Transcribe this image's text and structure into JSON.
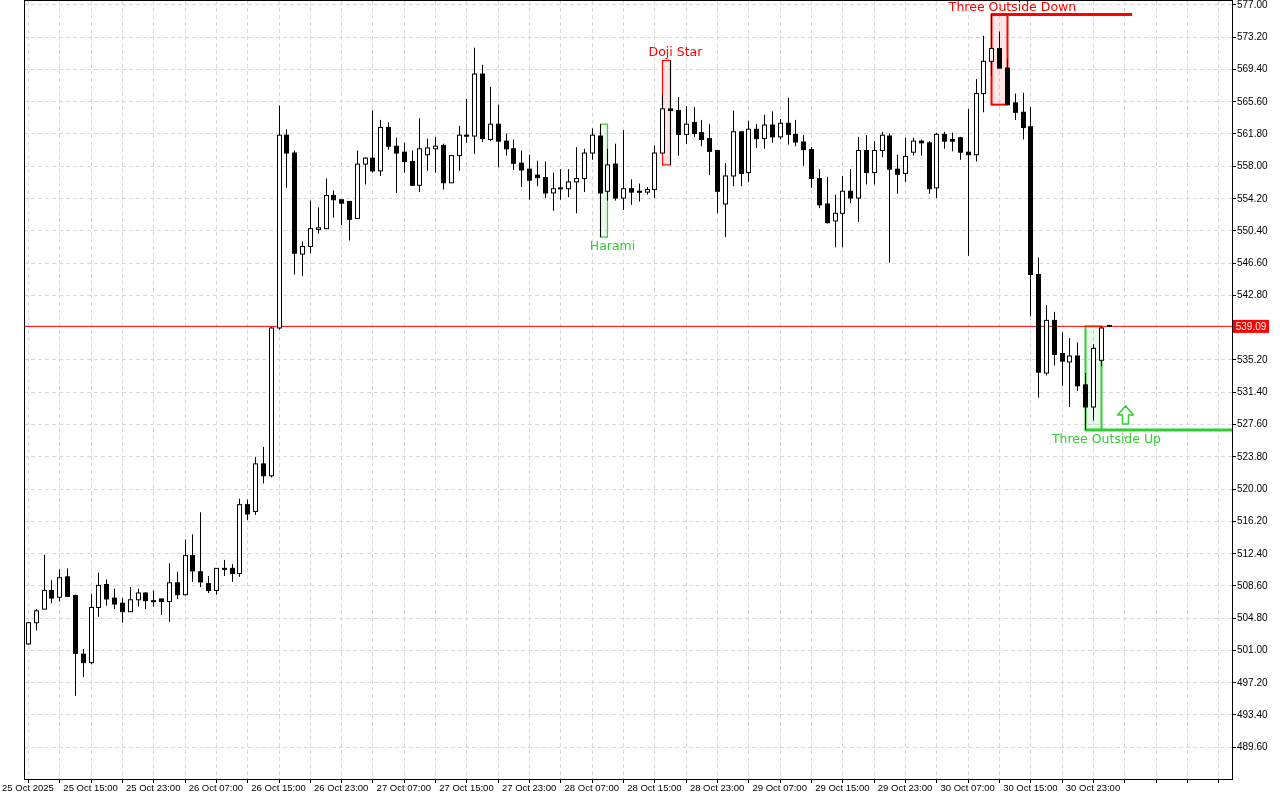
{
  "chart_data": {
    "type": "candlestick",
    "color": "#000000",
    "grid": true,
    "xlim": [
      "2025-10-25T06:30",
      "2025-10-31T16:45"
    ],
    "ylim": [
      485.8,
      577.4
    ],
    "x": [
      "2025-10-25T07:00",
      "2025-10-25T08:00",
      "2025-10-25T09:00",
      "2025-10-25T10:00",
      "2025-10-25T11:00",
      "2025-10-25T12:00",
      "2025-10-25T13:00",
      "2025-10-25T14:00",
      "2025-10-25T15:00",
      "2025-10-25T16:00",
      "2025-10-25T17:00",
      "2025-10-25T18:00",
      "2025-10-25T19:00",
      "2025-10-25T20:00",
      "2025-10-25T21:00",
      "2025-10-25T22:00",
      "2025-10-25T23:00",
      "2025-10-26T00:00",
      "2025-10-26T01:00",
      "2025-10-26T02:00",
      "2025-10-26T03:00",
      "2025-10-26T04:00",
      "2025-10-26T05:00",
      "2025-10-26T06:00",
      "2025-10-26T07:00",
      "2025-10-26T08:00",
      "2025-10-26T09:00",
      "2025-10-26T10:00",
      "2025-10-26T11:00",
      "2025-10-26T12:00",
      "2025-10-26T13:00",
      "2025-10-26T14:00",
      "2025-10-26T15:00",
      "2025-10-26T16:00",
      "2025-10-26T17:00",
      "2025-10-26T18:00",
      "2025-10-26T19:00",
      "2025-10-26T20:00",
      "2025-10-26T21:00",
      "2025-10-26T22:00",
      "2025-10-26T23:00",
      "2025-10-27T00:00",
      "2025-10-27T01:00",
      "2025-10-27T02:00",
      "2025-10-27T03:00",
      "2025-10-27T04:00",
      "2025-10-27T05:00",
      "2025-10-27T06:00",
      "2025-10-27T07:00",
      "2025-10-27T08:00",
      "2025-10-27T09:00",
      "2025-10-27T10:00",
      "2025-10-27T11:00",
      "2025-10-27T12:00",
      "2025-10-27T13:00",
      "2025-10-27T14:00",
      "2025-10-27T15:00",
      "2025-10-27T16:00",
      "2025-10-27T17:00",
      "2025-10-27T18:00",
      "2025-10-27T19:00",
      "2025-10-27T20:00",
      "2025-10-27T21:00",
      "2025-10-27T22:00",
      "2025-10-27T23:00",
      "2025-10-28T00:00",
      "2025-10-28T01:00",
      "2025-10-28T02:00",
      "2025-10-28T03:00",
      "2025-10-28T04:00",
      "2025-10-28T05:00",
      "2025-10-28T06:00",
      "2025-10-28T07:00",
      "2025-10-28T08:00",
      "2025-10-28T09:00",
      "2025-10-28T10:00",
      "2025-10-28T11:00",
      "2025-10-28T12:00",
      "2025-10-28T13:00",
      "2025-10-28T14:00",
      "2025-10-28T15:00",
      "2025-10-28T16:00",
      "2025-10-28T17:00",
      "2025-10-28T18:00",
      "2025-10-28T19:00",
      "2025-10-28T20:00",
      "2025-10-28T21:00",
      "2025-10-28T22:00",
      "2025-10-28T23:00",
      "2025-10-29T00:00",
      "2025-10-29T01:00",
      "2025-10-29T02:00",
      "2025-10-29T03:00",
      "2025-10-29T04:00",
      "2025-10-29T05:00",
      "2025-10-29T06:00",
      "2025-10-29T07:00",
      "2025-10-29T08:00",
      "2025-10-29T09:00",
      "2025-10-29T10:00",
      "2025-10-29T11:00",
      "2025-10-29T12:00",
      "2025-10-29T13:00",
      "2025-10-29T14:00",
      "2025-10-29T15:00",
      "2025-10-29T16:00",
      "2025-10-29T17:00",
      "2025-10-29T18:00",
      "2025-10-29T19:00",
      "2025-10-29T20:00",
      "2025-10-29T21:00",
      "2025-10-29T22:00",
      "2025-10-29T23:00",
      "2025-10-30T00:00",
      "2025-10-30T01:00",
      "2025-10-30T02:00",
      "2025-10-30T03:00",
      "2025-10-30T04:00",
      "2025-10-30T05:00",
      "2025-10-30T06:00",
      "2025-10-30T07:00",
      "2025-10-30T08:00",
      "2025-10-30T09:00",
      "2025-10-30T10:00",
      "2025-10-30T11:00",
      "2025-10-30T12:00",
      "2025-10-30T13:00",
      "2025-10-30T14:00",
      "2025-10-30T15:00",
      "2025-10-30T16:00",
      "2025-10-30T17:00",
      "2025-10-30T18:00",
      "2025-10-30T19:00",
      "2025-10-30T20:00",
      "2025-10-30T21:00",
      "2025-10-30T22:00",
      "2025-10-30T23:00",
      "2025-10-31T00:00",
      "2025-10-31T01:00"
    ],
    "ohlc": [
      [
        501.7,
        504.3,
        501.6,
        504.2
      ],
      [
        504.2,
        505.8,
        503.3,
        505.6
      ],
      [
        505.8,
        512.2,
        505.8,
        508.0
      ],
      [
        508.0,
        509.2,
        506.5,
        507.1
      ],
      [
        507.2,
        510.5,
        506.7,
        509.5
      ],
      [
        509.6,
        510.6,
        507.3,
        507.3
      ],
      [
        507.4,
        507.5,
        495.6,
        500.6
      ],
      [
        500.5,
        501.1,
        497.8,
        499.5
      ],
      [
        499.5,
        507.6,
        499.3,
        506.0
      ],
      [
        506.0,
        510.1,
        504.9,
        508.6
      ],
      [
        508.7,
        509.3,
        506.2,
        507.0
      ],
      [
        507.1,
        508.2,
        505.8,
        506.4
      ],
      [
        506.5,
        507.1,
        504.2,
        505.5
      ],
      [
        505.5,
        508.4,
        505.5,
        506.9
      ],
      [
        506.9,
        508.2,
        506.1,
        507.7
      ],
      [
        507.7,
        507.8,
        505.8,
        506.8
      ],
      [
        506.8,
        508.0,
        506.1,
        506.8
      ],
      [
        507.0,
        507.0,
        505.1,
        506.7
      ],
      [
        506.7,
        511.2,
        504.3,
        508.9
      ],
      [
        508.9,
        510.2,
        507.0,
        507.5
      ],
      [
        507.5,
        514.0,
        507.4,
        512.1
      ],
      [
        512.1,
        514.6,
        509.0,
        510.3
      ],
      [
        510.2,
        517.2,
        508.4,
        509.0
      ],
      [
        508.8,
        509.7,
        507.7,
        508.0
      ],
      [
        508.0,
        510.6,
        507.5,
        510.6
      ],
      [
        510.6,
        511.6,
        509.7,
        510.6
      ],
      [
        510.6,
        511.1,
        509.0,
        510.0
      ],
      [
        510.0,
        518.8,
        509.6,
        518.1
      ],
      [
        518.1,
        518.7,
        516.3,
        517.0
      ],
      [
        517.3,
        523.7,
        516.9,
        522.9
      ],
      [
        522.9,
        524.9,
        520.6,
        521.5
      ],
      [
        521.5,
        539.0,
        521.3,
        538.9
      ],
      [
        538.9,
        565.1,
        538.7,
        561.6
      ],
      [
        561.6,
        562.3,
        555.4,
        559.5
      ],
      [
        559.5,
        559.8,
        545.2,
        547.7
      ],
      [
        547.6,
        549.1,
        545.0,
        548.5
      ],
      [
        548.5,
        553.9,
        547.7,
        550.6
      ],
      [
        550.5,
        553.1,
        550.0,
        550.7
      ],
      [
        550.6,
        556.5,
        550.6,
        554.5
      ],
      [
        554.5,
        555.1,
        551.9,
        554.0
      ],
      [
        554.0,
        554.0,
        551.0,
        553.6
      ],
      [
        553.8,
        553.8,
        549.2,
        551.7
      ],
      [
        551.8,
        559.8,
        551.8,
        558.2
      ],
      [
        558.2,
        559.0,
        555.8,
        558.9
      ],
      [
        558.9,
        564.5,
        557.2,
        557.4
      ],
      [
        557.4,
        563.4,
        556.8,
        562.5
      ],
      [
        562.5,
        563.1,
        559.9,
        560.3
      ],
      [
        560.3,
        561.3,
        554.8,
        559.5
      ],
      [
        559.6,
        560.7,
        557.2,
        558.5
      ],
      [
        558.5,
        559.8,
        555.7,
        555.7
      ],
      [
        555.7,
        563.6,
        554.9,
        560.0
      ],
      [
        559.3,
        561.2,
        557.4,
        560.1
      ],
      [
        560.0,
        561.4,
        557.2,
        560.3
      ],
      [
        560.4,
        560.6,
        555.2,
        556.0
      ],
      [
        556.0,
        559.2,
        556.0,
        559.2
      ],
      [
        559.2,
        562.7,
        557.4,
        561.6
      ],
      [
        561.6,
        565.9,
        560.7,
        561.5
      ],
      [
        561.5,
        571.9,
        559.4,
        568.8
      ],
      [
        568.8,
        569.9,
        560.8,
        561.2
      ],
      [
        561.1,
        567.3,
        560.9,
        562.9
      ],
      [
        562.9,
        565.2,
        557.8,
        560.9
      ],
      [
        560.9,
        561.8,
        559.2,
        560.0
      ],
      [
        560.0,
        561.1,
        557.5,
        558.3
      ],
      [
        558.3,
        559.8,
        555.5,
        557.5
      ],
      [
        557.6,
        559.3,
        554.0,
        556.3
      ],
      [
        556.9,
        558.6,
        555.6,
        556.6
      ],
      [
        556.6,
        558.5,
        554.2,
        554.8
      ],
      [
        554.8,
        557.2,
        552.7,
        555.3
      ],
      [
        555.4,
        557.6,
        554.0,
        555.3
      ],
      [
        555.3,
        557.6,
        554.3,
        556.1
      ],
      [
        556.1,
        560.2,
        552.4,
        556.5
      ],
      [
        556.5,
        560.0,
        554.9,
        559.5
      ],
      [
        559.5,
        562.4,
        558.7,
        561.6
      ],
      [
        561.5,
        562.9,
        549.6,
        554.8
      ],
      [
        555.0,
        560.0,
        553.9,
        558.1
      ],
      [
        558.2,
        560.6,
        553.9,
        554.2
      ],
      [
        554.2,
        562.2,
        552.8,
        555.3
      ],
      [
        555.3,
        556.4,
        553.4,
        554.9
      ],
      [
        555.0,
        555.9,
        553.8,
        554.9
      ],
      [
        554.9,
        555.5,
        554.6,
        555.2
      ],
      [
        555.2,
        560.4,
        554.2,
        559.5
      ],
      [
        559.5,
        566.4,
        559.5,
        564.7
      ],
      [
        564.7,
        570.4,
        558.1,
        564.5
      ],
      [
        564.5,
        566.1,
        559.2,
        561.7
      ],
      [
        561.7,
        565.0,
        560.6,
        562.9
      ],
      [
        563.1,
        564.9,
        561.4,
        561.8
      ],
      [
        561.9,
        563.4,
        560.3,
        561.1
      ],
      [
        561.2,
        562.9,
        556.9,
        559.7
      ],
      [
        559.8,
        559.8,
        552.4,
        555.0
      ],
      [
        553.5,
        558.3,
        549.6,
        556.8
      ],
      [
        556.8,
        564.5,
        555.6,
        562.0
      ],
      [
        562.0,
        562.0,
        555.6,
        557.1
      ],
      [
        557.2,
        563.3,
        556.1,
        562.3
      ],
      [
        562.3,
        562.9,
        560.1,
        561.2
      ],
      [
        561.2,
        564.0,
        560.0,
        562.8
      ],
      [
        562.8,
        564.4,
        560.7,
        561.4
      ],
      [
        561.4,
        563.5,
        561.1,
        563.0
      ],
      [
        563.0,
        566.0,
        560.5,
        561.7
      ],
      [
        561.7,
        563.4,
        560.3,
        560.8
      ],
      [
        560.8,
        561.6,
        558.0,
        559.9
      ],
      [
        559.9,
        560.2,
        555.4,
        556.5
      ],
      [
        556.5,
        557.6,
        553.0,
        553.4
      ],
      [
        553.5,
        556.7,
        551.2,
        551.3
      ],
      [
        551.5,
        554.6,
        548.4,
        552.4
      ],
      [
        552.4,
        556.8,
        548.4,
        555.0
      ],
      [
        555.0,
        557.6,
        553.6,
        554.2
      ],
      [
        554.2,
        561.4,
        551.4,
        559.8
      ],
      [
        559.8,
        561.6,
        555.8,
        557.2
      ],
      [
        557.2,
        560.9,
        555.8,
        559.8
      ],
      [
        559.8,
        562.0,
        559.0,
        561.6
      ],
      [
        561.5,
        561.8,
        546.6,
        557.6
      ],
      [
        557.6,
        559.3,
        554.7,
        557.0
      ],
      [
        557.1,
        561.3,
        556.1,
        559.1
      ],
      [
        559.6,
        561.3,
        559.2,
        560.9
      ],
      [
        560.9,
        561.1,
        559.2,
        560.7
      ],
      [
        560.7,
        560.9,
        554.7,
        555.3
      ],
      [
        555.4,
        561.9,
        554.2,
        561.7
      ],
      [
        561.7,
        562.0,
        560.0,
        560.9
      ],
      [
        561.1,
        561.9,
        559.7,
        560.9
      ],
      [
        561.3,
        561.4,
        558.7,
        559.6
      ],
      [
        559.6,
        564.7,
        547.4,
        559.3
      ],
      [
        559.3,
        568.2,
        558.5,
        566.5
      ],
      [
        566.5,
        573.3,
        564.3,
        570.3
      ],
      [
        570.3,
        575.8,
        568.6,
        571.8
      ],
      [
        571.8,
        573.8,
        569.5,
        569.5
      ],
      [
        569.5,
        570.5,
        565.2,
        565.2
      ],
      [
        565.4,
        566.5,
        563.4,
        564.3
      ],
      [
        564.3,
        566.6,
        561.1,
        562.5
      ],
      [
        562.6,
        564.9,
        540.3,
        545.2
      ],
      [
        545.2,
        547.2,
        530.7,
        533.7
      ],
      [
        533.6,
        541.6,
        533.3,
        539.8
      ],
      [
        539.8,
        540.8,
        534.5,
        535.8
      ],
      [
        535.9,
        538.4,
        532.1,
        535.0
      ],
      [
        534.9,
        537.7,
        529.6,
        535.6
      ],
      [
        535.6,
        537.2,
        531.5,
        532.1
      ],
      [
        532.2,
        533.6,
        526.9,
        529.6
      ],
      [
        529.6,
        537.0,
        528.0,
        536.5
      ],
      [
        535.1,
        539.1,
        534.4,
        538.9
      ],
      [
        539.2,
        539.2,
        539.0,
        539.1
      ]
    ],
    "series": [
      {
        "type": "line",
        "x": [
          "2025-10-30T10:00",
          "2025-10-31T04:00"
        ],
        "values": [
          575.8,
          575.8
        ],
        "color": "#ff0000"
      },
      {
        "type": "line",
        "x": [
          "2025-10-30T22:00",
          "2025-10-31T16:45"
        ],
        "values": [
          526.9,
          526.9
        ],
        "color": "#32cd32"
      }
    ],
    "bands": [
      {
        "axis": "x",
        "from": "2025-10-28T08:00",
        "to": "2025-10-28T09:00",
        "label": "Harami",
        "color": "#32cd32"
      },
      {
        "axis": "x",
        "from": "2025-10-28T16:00",
        "to": "2025-10-28T17:00",
        "label": "Doji Star",
        "color": "#ff0000"
      },
      {
        "axis": "x",
        "from": "2025-10-30T10:00",
        "to": "2025-10-30T12:00",
        "label": "Three Outside Down",
        "color": "#ff0000"
      },
      {
        "axis": "x",
        "from": "2025-10-30T22:00",
        "to": "2025-10-31T00:00",
        "label": "Three Outside Up",
        "color": "#32cd32"
      }
    ],
    "ref_lines": [
      {
        "axis": "y",
        "value": 539.09,
        "label": "539.09",
        "color": "#ff0000"
      }
    ],
    "yticks": [
      {
        "value": 489.6,
        "label": "489.60"
      },
      {
        "value": 493.4,
        "label": "493.40"
      },
      {
        "value": 497.2,
        "label": "497.20"
      },
      {
        "value": 501.0,
        "label": "501.00"
      },
      {
        "value": 504.8,
        "label": "504.80"
      },
      {
        "value": 508.6,
        "label": "508.60"
      },
      {
        "value": 512.4,
        "label": "512.40"
      },
      {
        "value": 516.2,
        "label": "516.20"
      },
      {
        "value": 520.0,
        "label": "520.00"
      },
      {
        "value": 523.8,
        "label": "523.80"
      },
      {
        "value": 527.6,
        "label": "527.60"
      },
      {
        "value": 531.4,
        "label": "531.40"
      },
      {
        "value": 535.2,
        "label": "535.20"
      },
      {
        "value": 542.8,
        "label": "542.80"
      },
      {
        "value": 546.6,
        "label": "546.60"
      },
      {
        "value": 550.4,
        "label": "550.40"
      },
      {
        "value": 554.2,
        "label": "554.20"
      },
      {
        "value": 558.0,
        "label": "558.00"
      },
      {
        "value": 561.8,
        "label": "561.80"
      },
      {
        "value": 565.6,
        "label": "565.60"
      },
      {
        "value": 569.4,
        "label": "569.40"
      },
      {
        "value": 573.2,
        "label": "573.20"
      },
      {
        "value": 577.0,
        "label": "577.00"
      }
    ],
    "xticks": [
      {
        "value": "2025-10-25T07:00",
        "label": "25 Oct 2025"
      },
      {
        "value": "2025-10-25T11:00",
        "label": null
      },
      {
        "value": "2025-10-25T15:00",
        "label": "25 Oct 15:00"
      },
      {
        "value": "2025-10-25T19:00",
        "label": null
      },
      {
        "value": "2025-10-25T23:00",
        "label": "25 Oct 23:00"
      },
      {
        "value": "2025-10-26T03:00",
        "label": null
      },
      {
        "value": "2025-10-26T07:00",
        "label": "26 Oct 07:00"
      },
      {
        "value": "2025-10-26T11:00",
        "label": null
      },
      {
        "value": "2025-10-26T15:00",
        "label": "26 Oct 15:00"
      },
      {
        "value": "2025-10-26T19:00",
        "label": null
      },
      {
        "value": "2025-10-26T23:00",
        "label": "26 Oct 23:00"
      },
      {
        "value": "2025-10-27T03:00",
        "label": null
      },
      {
        "value": "2025-10-27T07:00",
        "label": "27 Oct 07:00"
      },
      {
        "value": "2025-10-27T11:00",
        "label": null
      },
      {
        "value": "2025-10-27T15:00",
        "label": "27 Oct 15:00"
      },
      {
        "value": "2025-10-27T19:00",
        "label": null
      },
      {
        "value": "2025-10-27T23:00",
        "label": "27 Oct 23:00"
      },
      {
        "value": "2025-10-28T03:00",
        "label": null
      },
      {
        "value": "2025-10-28T07:00",
        "label": "28 Oct 07:00"
      },
      {
        "value": "2025-10-28T11:00",
        "label": null
      },
      {
        "value": "2025-10-28T15:00",
        "label": "28 Oct 15:00"
      },
      {
        "value": "2025-10-28T19:00",
        "label": null
      },
      {
        "value": "2025-10-28T23:00",
        "label": "28 Oct 23:00"
      },
      {
        "value": "2025-10-29T03:00",
        "label": null
      },
      {
        "value": "2025-10-29T07:00",
        "label": "29 Oct 07:00"
      },
      {
        "value": "2025-10-29T11:00",
        "label": null
      },
      {
        "value": "2025-10-29T15:00",
        "label": "29 Oct 15:00"
      },
      {
        "value": "2025-10-29T19:00",
        "label": null
      },
      {
        "value": "2025-10-29T23:00",
        "label": "29 Oct 23:00"
      },
      {
        "value": "2025-10-30T03:00",
        "label": null
      },
      {
        "value": "2025-10-30T07:00",
        "label": "30 Oct 07:00"
      },
      {
        "value": "2025-10-30T11:00",
        "label": null
      },
      {
        "value": "2025-10-30T15:00",
        "label": "30 Oct 15:00"
      },
      {
        "value": "2025-10-30T19:00",
        "label": null
      },
      {
        "value": "2025-10-30T23:00",
        "label": "30 Oct 23:00"
      },
      {
        "value": "2025-10-31T03:00",
        "label": null
      },
      {
        "value": "2025-10-31T07:00",
        "label": null
      },
      {
        "value": "2025-10-31T11:00",
        "label": null
      },
      {
        "value": "2025-10-31T15:00",
        "label": null
      }
    ]
  }
}
